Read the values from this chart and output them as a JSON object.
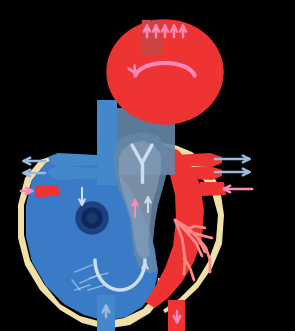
{
  "bg_color": "#000000",
  "cream": "#f0e0a8",
  "blue_main": "#3a7bc8",
  "blue_dark": "#2255a0",
  "blue_vessel": "#4488cc",
  "red_main": "#dd2222",
  "red_bright": "#ee3333",
  "red_dark": "#bb1111",
  "pink_arrow": "#ff88bb",
  "blue_arrow": "#99bbdd",
  "white_arrow": "#ccddef",
  "gray_mix": "#6688aa",
  "gray_light": "#99aabb",
  "dark_blue_oval": "#1a3a6a",
  "fig_w": 2.95,
  "fig_h": 3.31,
  "dpi": 100
}
